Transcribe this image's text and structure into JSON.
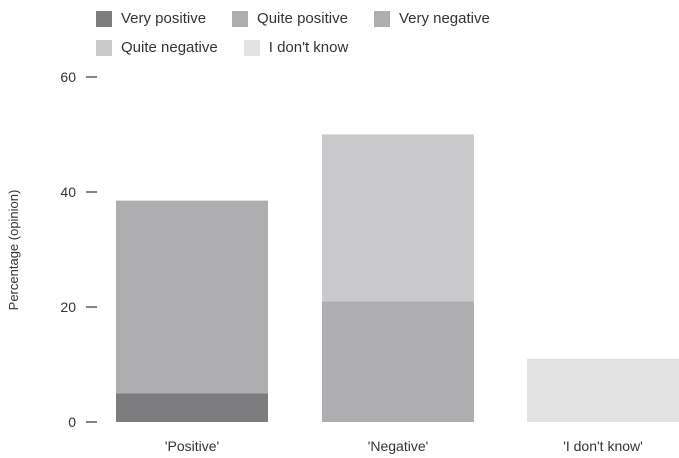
{
  "chart_data": {
    "type": "bar",
    "stacked": true,
    "title": "",
    "xlabel": "",
    "ylabel": "Percentage (opinion)",
    "ylim": [
      0,
      60
    ],
    "yticks": [
      0,
      20,
      40,
      60
    ],
    "grid": false,
    "legend_position": "top",
    "categories": [
      "'Positive'",
      "'Negative'",
      "'I don't know'"
    ],
    "series": [
      {
        "name": "Very positive",
        "color": "#7d7d7f",
        "values": [
          5,
          0,
          0
        ]
      },
      {
        "name": "Quite positive",
        "color": "#aeaeb0",
        "values": [
          33.5,
          0,
          0
        ]
      },
      {
        "name": "Very negative",
        "color": "#aeaeb0",
        "values": [
          0,
          21,
          0
        ]
      },
      {
        "name": "Quite negative",
        "color": "#c9c9cb",
        "values": [
          0,
          29,
          0
        ]
      },
      {
        "name": "I don't know",
        "color": "#e3e3e4",
        "values": [
          0,
          0,
          11
        ]
      }
    ]
  }
}
